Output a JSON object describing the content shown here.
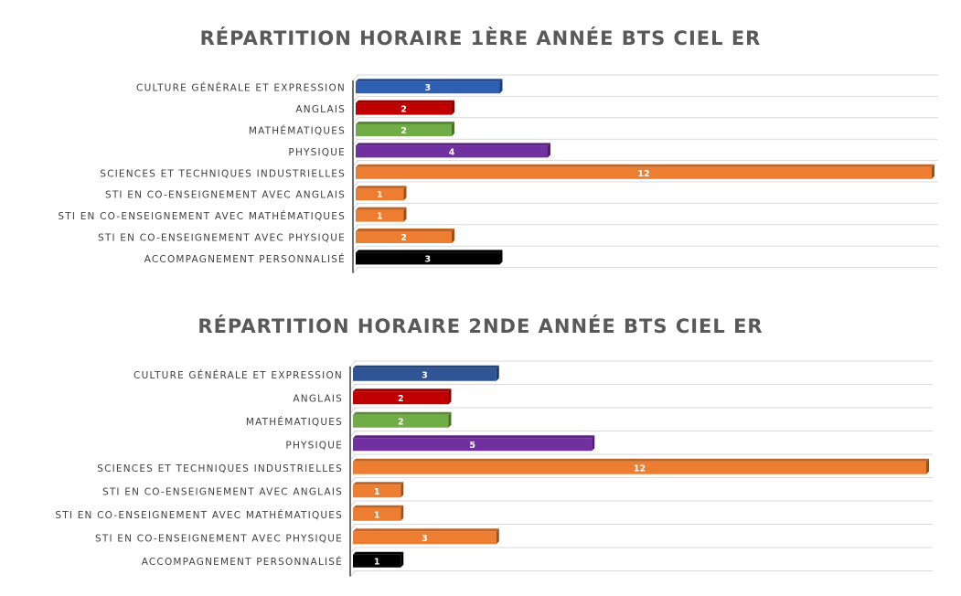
{
  "chart_data": [
    {
      "type": "bar",
      "orientation": "horizontal",
      "title": "RÉPARTITION HORAIRE 1ÈRE ANNÉE BTS CIEL ER",
      "categories": [
        "CULTURE GÉNÉRALE ET EXPRESSION",
        "ANGLAIS",
        "MATHÉMATIQUES",
        "PHYSIQUE",
        "SCIENCES ET TECHNIQUES INDUSTRIELLES",
        "STI EN CO-ENSEIGNEMENT AVEC ANGLAIS",
        "STI EN CO-ENSEIGNEMENT AVEC MATHÉMATIQUES",
        "STI EN CO-ENSEIGNEMENT AVEC PHYSIQUE",
        "ACCOMPAGNEMENT PERSONNALISÉ"
      ],
      "values": [
        3,
        2,
        2,
        4,
        12,
        1,
        1,
        2,
        3
      ],
      "value_labels": [
        "3",
        "2",
        "2",
        "4",
        "12",
        "1",
        "1",
        "2",
        "3"
      ],
      "colors": [
        "#2F5FB3",
        "#C00000",
        "#70AD47",
        "#7030A0",
        "#ED7D31",
        "#ED7D31",
        "#ED7D31",
        "#ED7D31",
        "#000000"
      ],
      "xlim": [
        0,
        12
      ],
      "grid": true,
      "legend": "none"
    },
    {
      "type": "bar",
      "orientation": "horizontal",
      "title": "RÉPARTITION HORAIRE 2NDE ANNÉE BTS CIEL ER",
      "categories": [
        "CULTURE GÉNÉRALE ET EXPRESSION",
        "ANGLAIS",
        "MATHÉMATIQUES",
        "PHYSIQUE",
        "SCIENCES ET TECHNIQUES INDUSTRIELLES",
        "STI EN CO-ENSEIGNEMENT AVEC ANGLAIS",
        "STI EN CO-ENSEIGNEMENT AVEC MATHÉMATIQUES",
        "STI EN CO-ENSEIGNEMENT AVEC PHYSIQUE",
        "ACCOMPAGNEMENT PERSONNALISÉ"
      ],
      "values": [
        3,
        2,
        2,
        5,
        12,
        1,
        1,
        3,
        1
      ],
      "value_labels": [
        "3",
        "2",
        "2",
        "5",
        "12",
        "1",
        "1",
        "3",
        "1"
      ],
      "colors": [
        "#2F5597",
        "#C00000",
        "#70AD47",
        "#7030A0",
        "#ED7D31",
        "#ED7D31",
        "#ED7D31",
        "#ED7D31",
        "#000000"
      ],
      "xlim": [
        0,
        12
      ],
      "grid": true,
      "legend": "none"
    }
  ]
}
